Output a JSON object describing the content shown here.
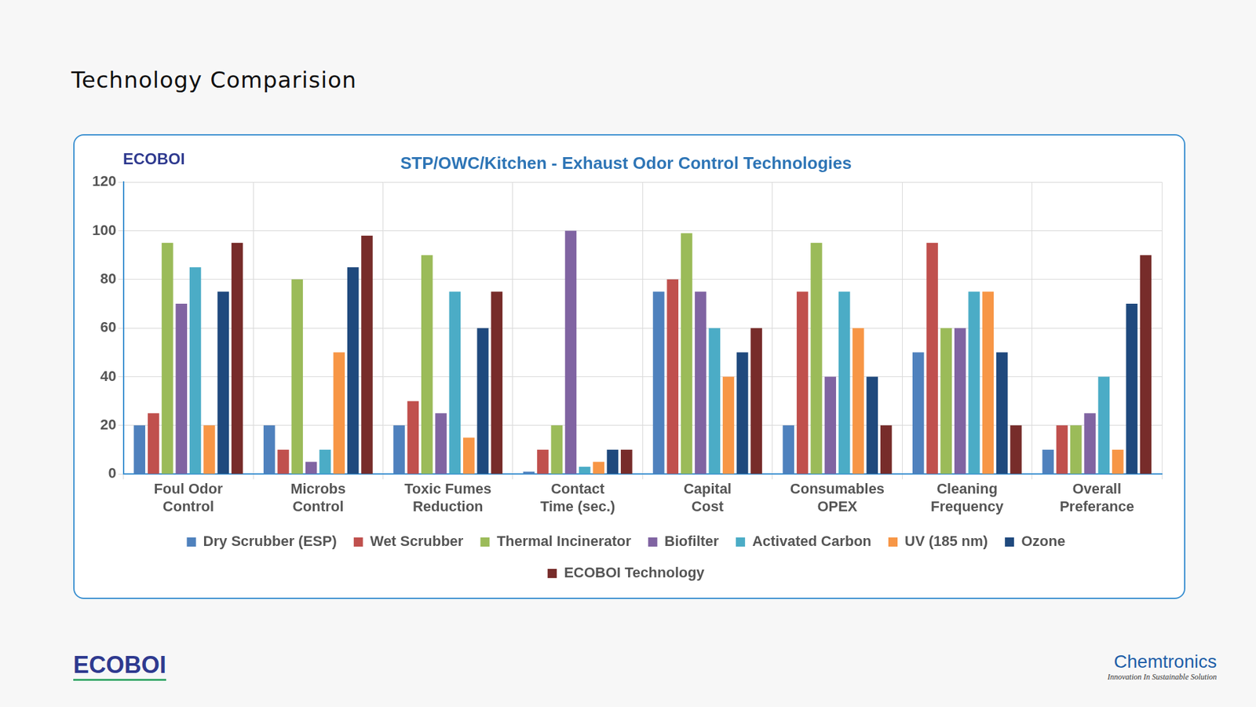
{
  "page_title": "Technology Comparision",
  "logos": [
    "ECOBOI",
    "Chemtronics"
  ],
  "tagline": "Innovation In Sustainable Solution",
  "chart_data": {
    "type": "bar",
    "title": "STP/OWC/Kitchen - Exhaust Odor Control Technologies",
    "categories": [
      [
        "Foul Odor",
        "Control"
      ],
      [
        "Microbs",
        "Control"
      ],
      [
        "Toxic Fumes",
        "Reduction"
      ],
      [
        "Contact",
        "Time (sec.)"
      ],
      [
        "Capital",
        "Cost"
      ],
      [
        "Consumables",
        "OPEX"
      ],
      [
        "Cleaning",
        "Frequency"
      ],
      [
        "Overall",
        "Preferance"
      ]
    ],
    "series": [
      {
        "name": "Dry Scrubber (ESP)",
        "color": "#4f81bd",
        "values": [
          20,
          20,
          20,
          1,
          75,
          20,
          50,
          10
        ]
      },
      {
        "name": "Wet Scrubber",
        "color": "#c0504d",
        "values": [
          25,
          10,
          30,
          10,
          80,
          75,
          95,
          20
        ]
      },
      {
        "name": "Thermal Incinerator",
        "color": "#9bbb59",
        "values": [
          95,
          80,
          90,
          20,
          99,
          95,
          60,
          20
        ]
      },
      {
        "name": "Biofilter",
        "color": "#8064a2",
        "values": [
          70,
          5,
          25,
          100,
          75,
          40,
          60,
          25
        ]
      },
      {
        "name": "Activated Carbon",
        "color": "#4bacc6",
        "values": [
          85,
          10,
          75,
          3,
          60,
          75,
          75,
          40
        ]
      },
      {
        "name": "UV (185 nm)",
        "color": "#f79646",
        "values": [
          20,
          50,
          15,
          5,
          40,
          60,
          75,
          10
        ]
      },
      {
        "name": "Ozone",
        "color": "#1f497d",
        "values": [
          75,
          85,
          60,
          10,
          50,
          40,
          50,
          70
        ]
      },
      {
        "name": "ECOBOI Technology",
        "color": "#772c2a",
        "values": [
          95,
          98,
          75,
          10,
          60,
          20,
          20,
          90
        ]
      }
    ],
    "ylim": [
      0,
      120
    ],
    "yticks": [
      0,
      20,
      40,
      60,
      80,
      100,
      120
    ],
    "grid": true,
    "legend": "bottom"
  }
}
